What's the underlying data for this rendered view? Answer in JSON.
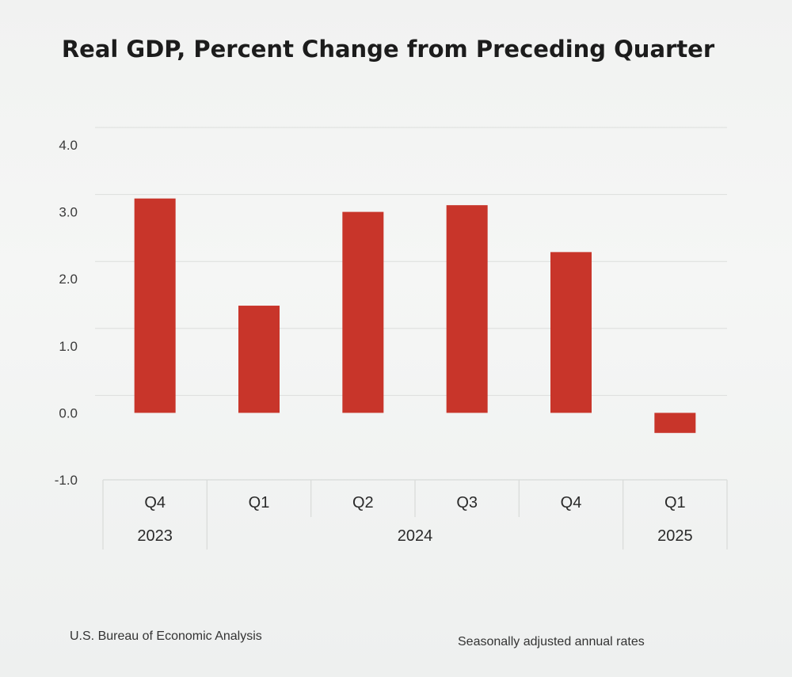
{
  "chart_data": {
    "type": "bar",
    "title": "Real GDP, Percent Change from Preceding Quarter",
    "categories": [
      "Q4",
      "Q1",
      "Q2",
      "Q3",
      "Q4",
      "Q1"
    ],
    "year_groups": [
      {
        "label": "2023",
        "span": [
          0,
          0
        ]
      },
      {
        "label": "2024",
        "span": [
          1,
          4
        ]
      },
      {
        "label": "2025",
        "span": [
          5,
          5
        ]
      }
    ],
    "values": [
      3.2,
      1.6,
      3.0,
      3.1,
      2.4,
      -0.3
    ],
    "ylim": [
      -1.0,
      4.0
    ],
    "yticks": [
      "4.0",
      "3.0",
      "2.0",
      "1.0",
      "0.0",
      "-1.0"
    ],
    "xlabel": "",
    "ylabel": "",
    "grid": true,
    "bar_color": "#c8352a"
  },
  "footer": {
    "source": "U.S. Bureau of Economic Analysis",
    "note": "Seasonally adjusted annual rates"
  }
}
